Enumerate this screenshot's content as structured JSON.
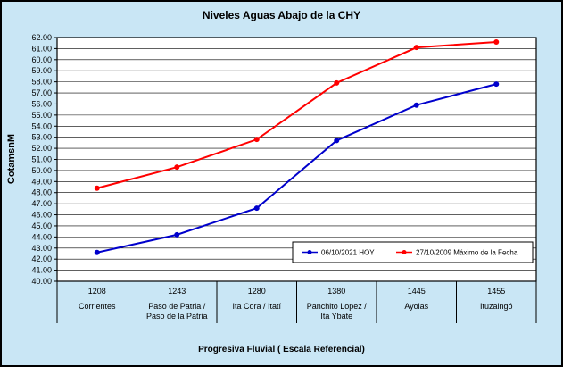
{
  "chart_data": {
    "type": "line",
    "title": "Niveles Aguas Abajo de la CHY",
    "ylabel": "CotamsnM",
    "xlabel": "Progresiva Fluvial ( Escala Referencial)",
    "ylim": [
      40,
      62
    ],
    "y_tick_step": 1,
    "y_tick_decimals": 2,
    "grid": true,
    "legend_position": "inside-bottom-right",
    "categories": [
      "1208",
      "1243",
      "1280",
      "1380",
      "1445",
      "1455"
    ],
    "category_names": [
      [
        "Corrientes"
      ],
      [
        "Paso de Patria /",
        "Paso de la Patria"
      ],
      [
        "Ita Cora / Itatí"
      ],
      [
        "Panchito Lopez /",
        "Ita Ybate"
      ],
      [
        "Ayolas"
      ],
      [
        "Ituzaingó"
      ]
    ],
    "series": [
      {
        "name": "06/10/2021 HOY",
        "color": "#0000CC",
        "values": [
          42.6,
          44.2,
          46.6,
          52.7,
          55.9,
          57.8
        ]
      },
      {
        "name": "27/10/2009 Máximo de la Fecha",
        "color": "#FF0000",
        "values": [
          48.4,
          50.3,
          52.8,
          57.9,
          61.1,
          61.6
        ]
      }
    ],
    "colors": {
      "background": "#C9E6F5",
      "plot_background": "#FFFFFF",
      "grid": "#000000",
      "border": "#000000"
    }
  }
}
